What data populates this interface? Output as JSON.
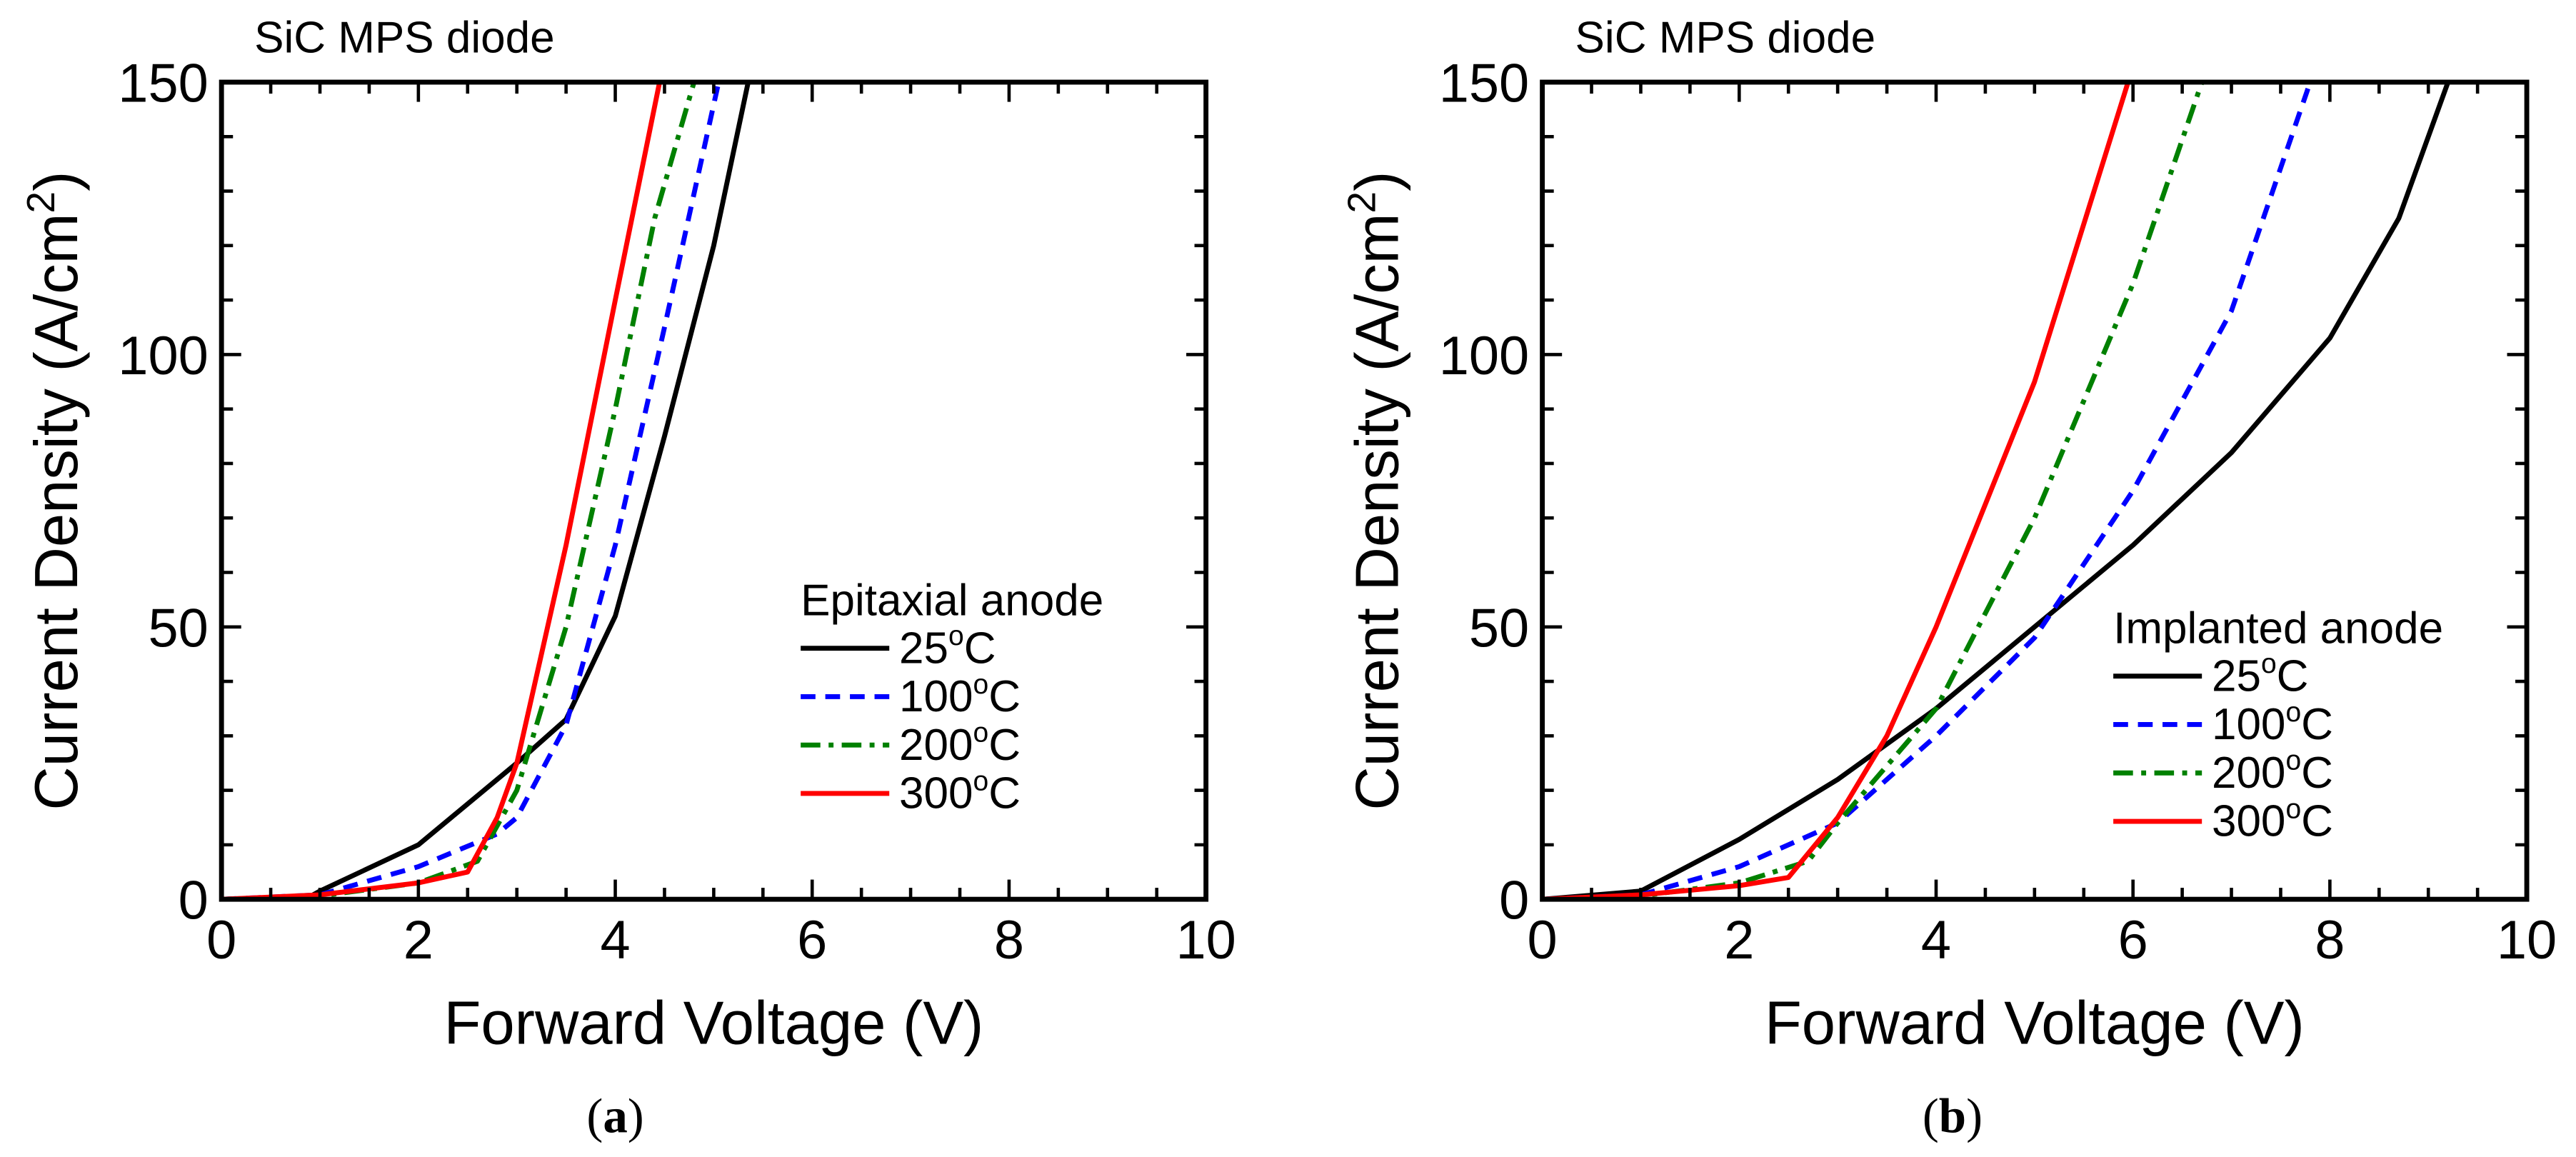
{
  "chart_data": [
    {
      "type": "line",
      "panel_label": "a",
      "title": "SiC MPS diode",
      "xlabel": "Forward Voltage (V)",
      "ylabel": "Current Density (A/cm",
      "ylabel_sup": "2",
      "ylabel_end": ")",
      "xlim": [
        0,
        10
      ],
      "ylim": [
        0,
        150
      ],
      "xticks": [
        0,
        2,
        4,
        6,
        8,
        10
      ],
      "yticks": [
        0,
        50,
        100,
        150
      ],
      "legend_title": "Epitaxial anode",
      "legend_placement": "center-right",
      "series": [
        {
          "name": "25",
          "unit": "C",
          "deg": "o",
          "color": "#000000",
          "dash": "solid",
          "x": [
            0,
            0.9,
            1,
            2,
            3,
            3.5,
            4,
            4.5,
            5,
            5.35
          ],
          "y": [
            0,
            0.5,
            1.5,
            10,
            25,
            33,
            52,
            85,
            120,
            150
          ]
        },
        {
          "name": "100",
          "unit": "C",
          "deg": "o",
          "color": "#0000ff",
          "dash": "dash",
          "x": [
            0,
            1,
            2,
            2.8,
            3,
            3.5,
            4,
            4.5,
            5.05
          ],
          "y": [
            0,
            0.8,
            6,
            12,
            15,
            32,
            65,
            105,
            150
          ]
        },
        {
          "name": "200",
          "unit": "C",
          "deg": "o",
          "color": "#008000",
          "dash": "dashdot",
          "x": [
            0,
            1,
            2,
            2.6,
            3,
            3.5,
            4,
            4.4,
            4.8
          ],
          "y": [
            0,
            0.6,
            3,
            7,
            20,
            50,
            90,
            125,
            150
          ]
        },
        {
          "name": "300",
          "unit": "C",
          "deg": "o",
          "color": "#ff0000",
          "dash": "solid",
          "x": [
            0,
            1,
            2,
            2.5,
            2.8,
            3,
            3.5,
            4,
            4.45
          ],
          "y": [
            0,
            0.8,
            3,
            5,
            15,
            25,
            65,
            110,
            150
          ]
        }
      ]
    },
    {
      "type": "line",
      "panel_label": "b",
      "title": "SiC MPS diode",
      "xlabel": "Forward Voltage (V)",
      "ylabel": "Current Density (A/cm",
      "ylabel_sup": "2",
      "ylabel_end": ")",
      "xlim": [
        0,
        10
      ],
      "ylim": [
        0,
        150
      ],
      "xticks": [
        0,
        2,
        4,
        6,
        8,
        10
      ],
      "yticks": [
        0,
        50,
        100,
        150
      ],
      "legend_title": "Implanted anode",
      "legend_placement": "center-right",
      "series": [
        {
          "name": "25",
          "unit": "C",
          "deg": "o",
          "color": "#000000",
          "dash": "solid",
          "x": [
            0,
            1,
            2,
            3,
            4,
            5,
            6,
            7,
            8,
            8.7,
            9.2
          ],
          "y": [
            0,
            1.5,
            11,
            22,
            35,
            50,
            65,
            82,
            103,
            125,
            150
          ]
        },
        {
          "name": "100",
          "unit": "C",
          "deg": "o",
          "color": "#0000ff",
          "dash": "dash",
          "x": [
            0,
            1,
            2,
            3,
            4,
            5,
            6,
            7,
            7.8
          ],
          "y": [
            0,
            0.8,
            6,
            14,
            30,
            48,
            75,
            108,
            150
          ]
        },
        {
          "name": "200",
          "unit": "C",
          "deg": "o",
          "color": "#008000",
          "dash": "dashdot",
          "x": [
            0,
            1,
            2,
            2.7,
            3,
            4,
            5,
            6,
            6.7
          ],
          "y": [
            0,
            0.6,
            3,
            7,
            14,
            35,
            70,
            113,
            150
          ]
        },
        {
          "name": "300",
          "unit": "C",
          "deg": "o",
          "color": "#ff0000",
          "dash": "solid",
          "x": [
            0,
            1,
            2,
            2.5,
            3,
            3.5,
            4,
            5,
            5.95
          ],
          "y": [
            0,
            0.8,
            2.5,
            4,
            15,
            30,
            50,
            95,
            150
          ]
        }
      ]
    }
  ]
}
